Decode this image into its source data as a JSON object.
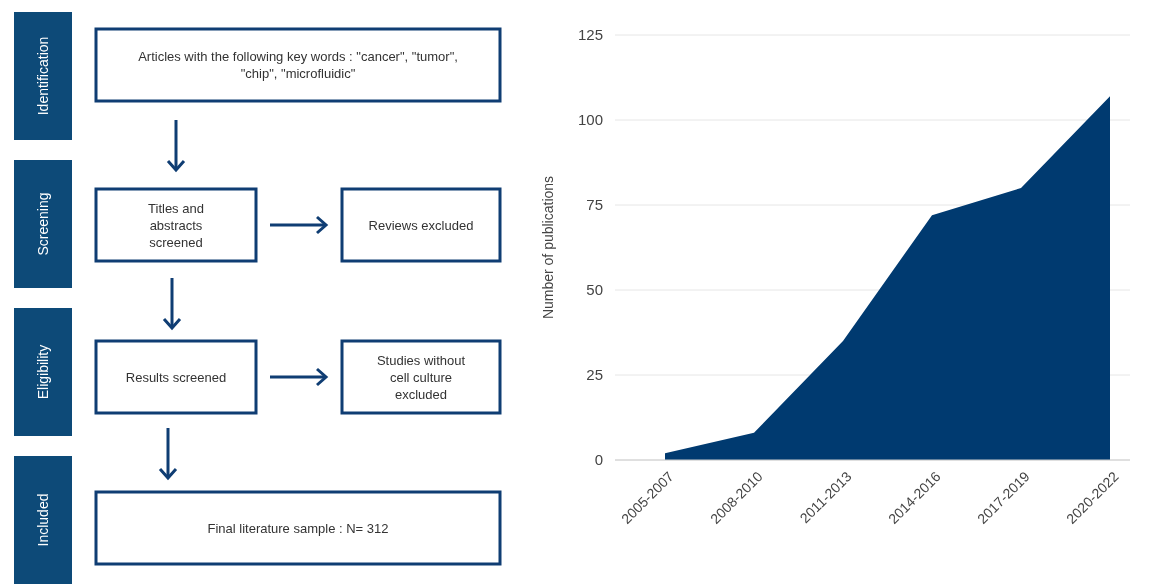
{
  "chart_data": [
    {
      "type": "other",
      "annotations": [
        "Identification",
        "Screening",
        "Eligibility",
        "Included",
        "Articles with the following key words : \"cancer\", \"tumor\", \"chip\", \"microfluidic\"",
        "Titles and abstracts screened",
        "Reviews excluded",
        "Results screened",
        "Studies without cell culture excluded",
        "Final literature sample : N= 312"
      ]
    },
    {
      "type": "area",
      "ylabel": "Number of publications",
      "categories": [
        "2005-2007",
        "2008-2010",
        "2011-2013",
        "2014-2016",
        "2017-2019",
        "2020-2022"
      ],
      "series": [
        {
          "color": "#003a70",
          "values": [
            2,
            8,
            35,
            72,
            80,
            107
          ]
        }
      ],
      "ylim": [
        0,
        125
      ],
      "yticks": [
        0,
        25,
        50,
        75,
        100,
        125
      ],
      "grid": "y"
    }
  ]
}
